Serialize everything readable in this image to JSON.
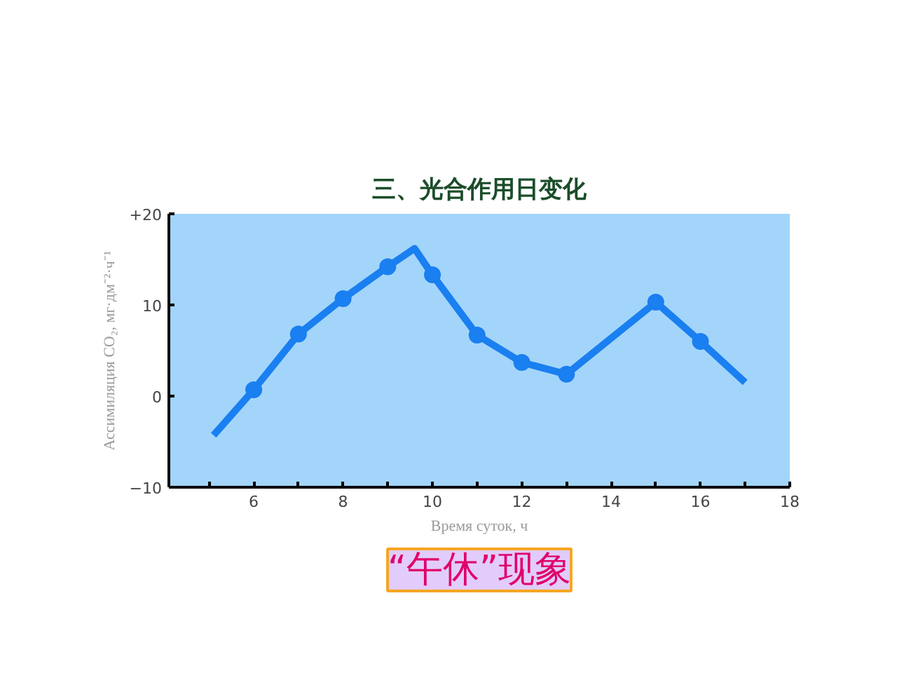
{
  "chart_data": {
    "type": "line",
    "title": "三、光合作用日变化",
    "xlabel": "Время суток, ч",
    "ylabel": "Ассимиляция CO₂, мг·дм⁻²·ч⁻¹",
    "series": [
      {
        "color": "#1a7ff0",
        "marker": "none",
        "x": [
          5.1,
          6.0,
          7.0,
          8.0,
          9.0,
          9.6,
          10.0,
          11.0,
          12.0,
          13.0,
          15.0,
          16.0,
          17.0
        ],
        "values": [
          -4.3,
          0.7,
          6.8,
          10.7,
          14.2,
          16.2,
          13.3,
          6.7,
          3.7,
          2.4,
          10.3,
          6.0,
          1.5
        ]
      },
      {
        "type": "scatter",
        "color": "#1a7ff0",
        "marker": "circle",
        "x": [
          6.0,
          7.0,
          8.0,
          9.0,
          10.0,
          11.0,
          12.0,
          13.0,
          15.0,
          16.0
        ],
        "values": [
          0.7,
          6.8,
          10.7,
          14.2,
          13.3,
          6.7,
          3.7,
          2.4,
          10.3,
          6.0
        ]
      }
    ],
    "xlim": [
      4.1,
      18
    ],
    "ylim": [
      -10,
      20
    ],
    "xticks": [
      {
        "value": 5,
        "label": null
      },
      6,
      {
        "value": 7,
        "label": null
      },
      8,
      {
        "value": 9,
        "label": null
      },
      10,
      {
        "value": 11,
        "label": null
      },
      12,
      {
        "value": 13,
        "label": null
      },
      14,
      {
        "value": 15,
        "label": null
      },
      16,
      {
        "value": 17,
        "label": null
      },
      18
    ],
    "yticks": [
      {
        "value": -10,
        "label": "−10"
      },
      0,
      10,
      {
        "value": 20,
        "label": "+20"
      }
    ],
    "grid": false,
    "annotations": [
      "“午休”现象"
    ]
  }
}
